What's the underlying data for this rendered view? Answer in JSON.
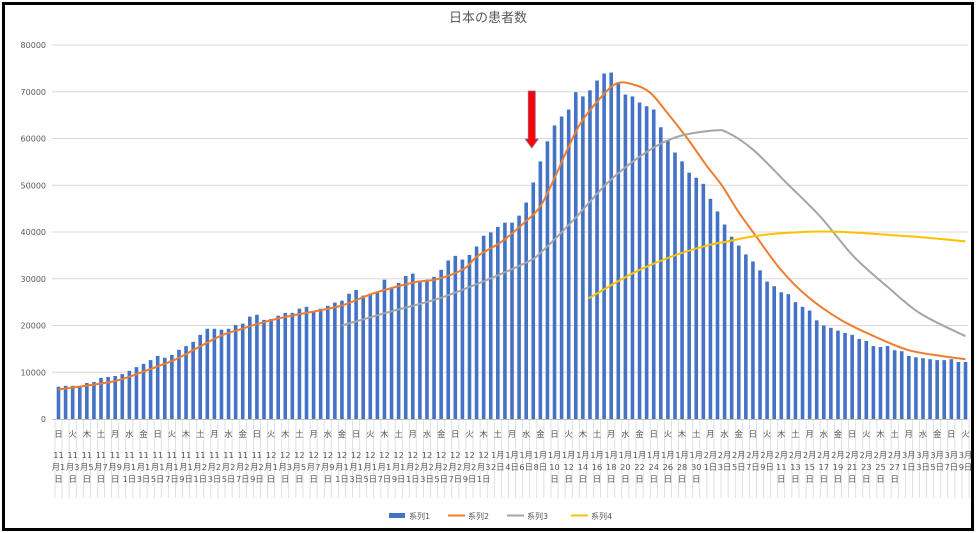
{
  "chart_data": {
    "type": "bar",
    "title": "日本の患者数",
    "xlabel": "",
    "ylabel": "",
    "ylim": [
      0,
      80000
    ],
    "y_ticks": [
      "0",
      "10000",
      "20000",
      "30000",
      "40000",
      "50000",
      "60000",
      "70000",
      "80000"
    ],
    "grid": true,
    "legend_position": "bottom",
    "x_weekday_labels": [
      "日",
      "火",
      "木",
      "土",
      "月",
      "水",
      "金",
      "日",
      "火",
      "木",
      "土",
      "月",
      "水",
      "金",
      "日",
      "火",
      "木",
      "土",
      "月",
      "水",
      "金",
      "日",
      "火",
      "木",
      "土",
      "月",
      "水",
      "金",
      "日",
      "火",
      "木",
      "土",
      "月",
      "水",
      "金",
      "日",
      "火",
      "木",
      "土",
      "月",
      "水",
      "金",
      "日",
      "火",
      "木",
      "土",
      "月",
      "水",
      "金",
      "日",
      "火",
      "木",
      "土",
      "月",
      "水",
      "金",
      "日",
      "火",
      "木",
      "土",
      "月",
      "水",
      "金",
      "日",
      "火"
    ],
    "x_date_labels": [
      "11月1日",
      "11月3日",
      "11月5日",
      "11月7日",
      "11月9日",
      "11月11日",
      "11月13日",
      "11月15日",
      "11月17日",
      "11月19日",
      "11月21日",
      "11月23日",
      "11月25日",
      "11月27日",
      "11月29日",
      "12月1日",
      "12月3日",
      "12月5日",
      "12月7日",
      "12月9日",
      "12月11日",
      "12月13日",
      "12月15日",
      "12月17日",
      "12月19日",
      "12月21日",
      "12月23日",
      "12月25日",
      "12月27日",
      "12月29日",
      "12月31日",
      "1月2日",
      "1月4日",
      "1月6日",
      "1月8日",
      "1月10日",
      "1月12日",
      "1月14日",
      "1月16日",
      "1月18日",
      "1月20日",
      "1月22日",
      "1月24日",
      "1月26日",
      "1月28日",
      "1月30日",
      "2月1日",
      "2月3日",
      "2月5日",
      "2月7日",
      "2月9日",
      "2月11日",
      "2月13日",
      "2月15日",
      "2月17日",
      "2月19日",
      "2月21日",
      "2月23日",
      "2月25日",
      "2月27日",
      "3月1日",
      "3月3日",
      "3月5日",
      "3月7日",
      "3月9日"
    ],
    "x_note": "one bar per day from 11月1日 to 3月9日 (129 days); labels printed every other day; line points use day index (0 = 11月1日)",
    "series": [
      {
        "name": "系列1",
        "type": "bar",
        "color": "#4472c4",
        "values": [
          6900,
          7100,
          7100,
          6900,
          7700,
          7900,
          8800,
          9000,
          9200,
          9600,
          10300,
          11100,
          11800,
          12600,
          13500,
          13100,
          13700,
          14800,
          15600,
          16500,
          18000,
          19300,
          19300,
          19100,
          19300,
          20100,
          20400,
          21900,
          22300,
          21200,
          21400,
          22100,
          22700,
          22700,
          23600,
          24000,
          23100,
          23600,
          24200,
          24900,
          25300,
          26800,
          27600,
          26400,
          26800,
          27000,
          29800,
          28100,
          29100,
          30600,
          31100,
          29600,
          29800,
          30400,
          31900,
          33900,
          34900,
          34100,
          35100,
          36900,
          39200,
          39900,
          41100,
          42000,
          42000,
          43500,
          46300,
          50600,
          55100,
          59400,
          62800,
          64700,
          66200,
          69900,
          69000,
          70300,
          72400,
          73900,
          74100,
          71800,
          69400,
          69000,
          67700,
          66900,
          66200,
          62400,
          59600,
          57000,
          55100,
          52700,
          51600,
          50300,
          47100,
          44400,
          41600,
          39000,
          37100,
          35200,
          33700,
          31800,
          29400,
          28400,
          27100,
          26700,
          25000,
          24000,
          23200,
          21100,
          20000,
          19500,
          18900,
          18400,
          18000,
          17100,
          16700,
          15600,
          15400,
          15600,
          14700,
          14500,
          13500,
          13200,
          13000,
          12800,
          12600,
          12600,
          12800,
          12200,
          12200
        ]
      },
      {
        "name": "系列2",
        "type": "line",
        "color": "#ed7d31",
        "points": [
          [
            0,
            6300
          ],
          [
            6.9,
            7800
          ],
          [
            9.7,
            8900
          ],
          [
            13,
            10700
          ],
          [
            16.3,
            12600
          ],
          [
            19.1,
            14800
          ],
          [
            22.9,
            17800
          ],
          [
            25.7,
            19200
          ],
          [
            28.5,
            20500
          ],
          [
            31.3,
            21600
          ],
          [
            33.9,
            22400
          ],
          [
            39.8,
            24200
          ],
          [
            44.5,
            26900
          ],
          [
            50.1,
            29200
          ],
          [
            53.4,
            29900
          ],
          [
            57.2,
            32100
          ],
          [
            59.1,
            34800
          ],
          [
            62.6,
            38000
          ],
          [
            66.1,
            42500
          ],
          [
            68,
            45500
          ],
          [
            69.9,
            51200
          ],
          [
            71.8,
            57600
          ],
          [
            73.7,
            63300
          ],
          [
            76.5,
            68700
          ],
          [
            78.8,
            71800
          ],
          [
            81.2,
            71500
          ],
          [
            83.5,
            69800
          ],
          [
            85.9,
            65500
          ],
          [
            88.7,
            60100
          ],
          [
            91.5,
            54100
          ],
          [
            93.6,
            50000
          ],
          [
            96,
            44200
          ],
          [
            98.1,
            39800
          ],
          [
            101.9,
            32000
          ],
          [
            105.7,
            26200
          ],
          [
            110.4,
            21200
          ],
          [
            115.1,
            17700
          ],
          [
            119.8,
            14800
          ],
          [
            124.5,
            13500
          ],
          [
            128,
            12800
          ]
        ]
      },
      {
        "name": "系列3",
        "type": "line",
        "color": "#a5a5a5",
        "points": [
          [
            40,
            20000
          ],
          [
            46.9,
            23000
          ],
          [
            53.9,
            25900
          ],
          [
            61,
            30100
          ],
          [
            66.3,
            33700
          ],
          [
            68,
            35500
          ],
          [
            72.7,
            42600
          ],
          [
            77.4,
            50400
          ],
          [
            82.1,
            56200
          ],
          [
            86.8,
            60100
          ],
          [
            92.4,
            61700
          ],
          [
            94.5,
            61200
          ],
          [
            98.1,
            57500
          ],
          [
            102.8,
            50400
          ],
          [
            107.5,
            43300
          ],
          [
            112.2,
            34800
          ],
          [
            116.9,
            28400
          ],
          [
            121.6,
            22600
          ],
          [
            128,
            17700
          ]
        ]
      },
      {
        "name": "系列4",
        "type": "line",
        "color": "#ffc000",
        "points": [
          [
            74.8,
            25800
          ],
          [
            81.2,
            31300
          ],
          [
            86.8,
            34900
          ],
          [
            91.5,
            37100
          ],
          [
            94.5,
            38000
          ],
          [
            98.1,
            39100
          ],
          [
            102.8,
            39800
          ],
          [
            107.5,
            40100
          ],
          [
            112.2,
            39900
          ],
          [
            116.9,
            39400
          ],
          [
            121.6,
            38900
          ],
          [
            128,
            38000
          ]
        ]
      }
    ],
    "annotation": {
      "type": "arrow",
      "color": "#ff0000",
      "direction": "down",
      "day_index": 67
    }
  }
}
